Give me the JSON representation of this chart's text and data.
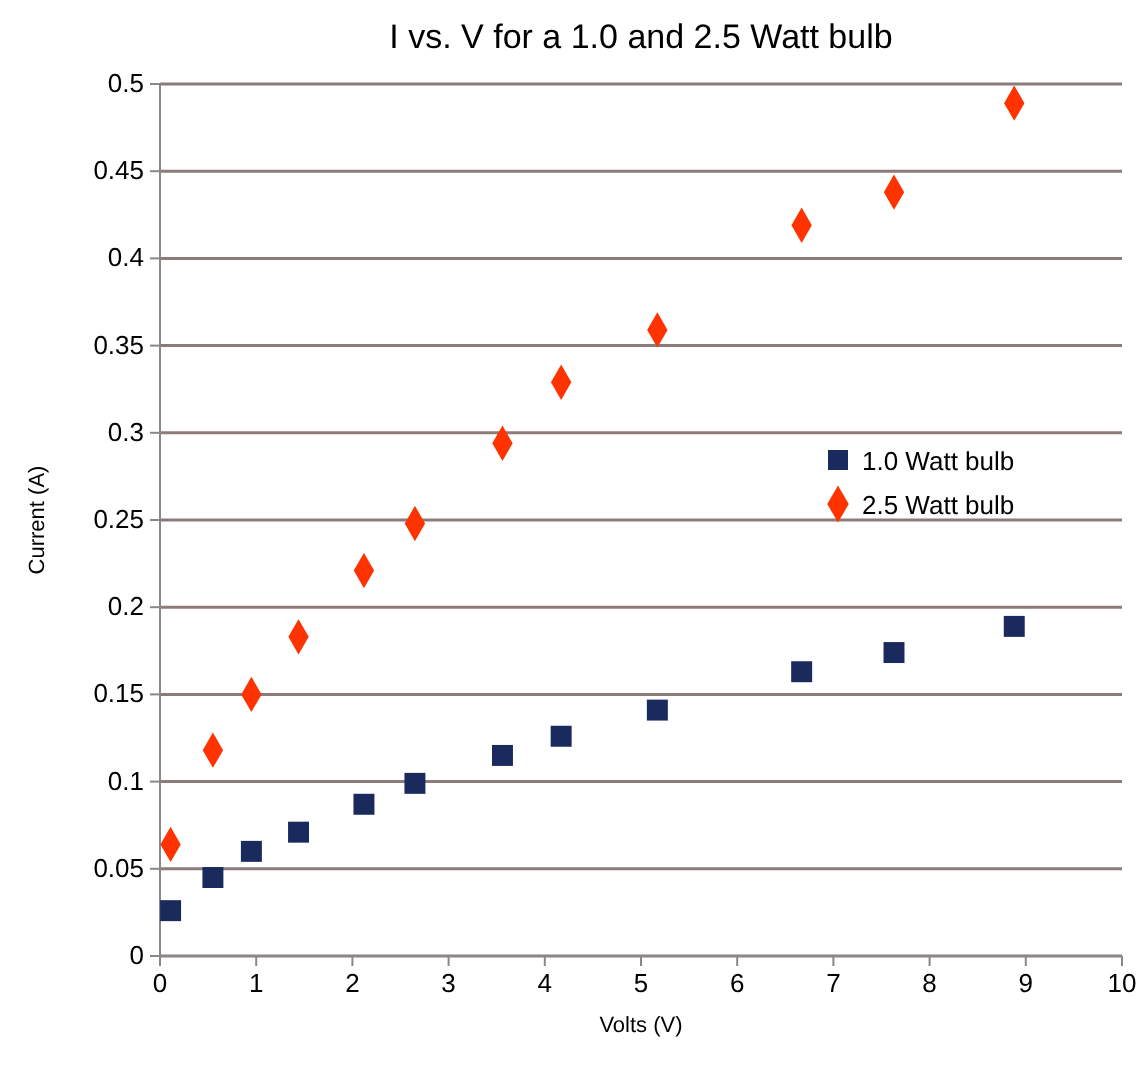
{
  "chart_data": {
    "type": "scatter",
    "title": "I vs. V for a 1.0 and 2.5 Watt bulb",
    "xlabel": "Volts (V)",
    "ylabel": "Current (A)",
    "xlim": [
      0,
      10
    ],
    "xticks": [
      0,
      1,
      2,
      3,
      4,
      5,
      6,
      7,
      8,
      9,
      10
    ],
    "ylim": [
      0,
      0.5
    ],
    "yticks": [
      0,
      0.05,
      0.1,
      0.15,
      0.2,
      0.25,
      0.3,
      0.35,
      0.4,
      0.45,
      0.5
    ],
    "grid": "y",
    "legend": "right",
    "series": [
      {
        "name": "1.0 Watt bulb",
        "color": "#1b2a5c",
        "marker": "square",
        "x": [
          0.11,
          0.55,
          0.95,
          1.44,
          2.12,
          2.65,
          3.56,
          4.17,
          5.17,
          6.67,
          7.63,
          8.88
        ],
        "values": [
          0.026,
          0.045,
          0.06,
          0.071,
          0.087,
          0.099,
          0.115,
          0.126,
          0.141,
          0.163,
          0.174,
          0.189
        ]
      },
      {
        "name": "2.5 Watt bulb",
        "color": "#ff3300",
        "marker": "diamond",
        "x": [
          0.11,
          0.55,
          0.95,
          1.44,
          2.12,
          2.65,
          3.56,
          4.17,
          5.17,
          6.67,
          7.63,
          8.88
        ],
        "values": [
          0.064,
          0.118,
          0.15,
          0.183,
          0.221,
          0.248,
          0.294,
          0.329,
          0.359,
          0.419,
          0.438,
          0.489
        ]
      }
    ]
  }
}
